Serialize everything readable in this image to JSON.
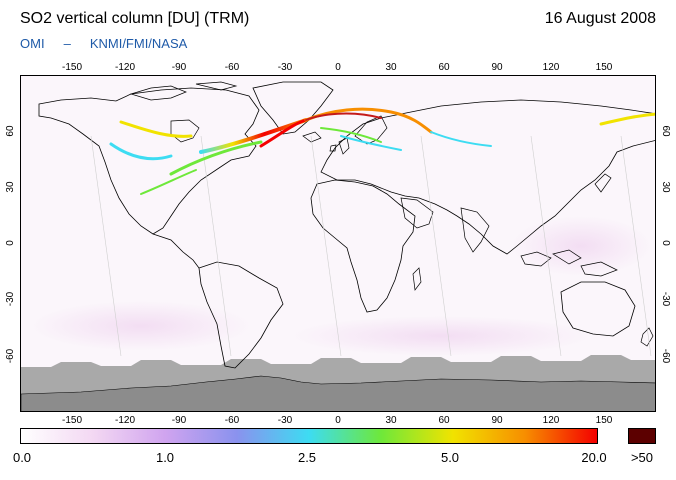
{
  "header": {
    "title": "SO2 vertical column [DU] (TRM)",
    "date": "16 August 2008",
    "source_left": "OMI",
    "source_sep": "–",
    "source_right": "KNMI/FMI/NASA",
    "source_color": "#1e5aa8"
  },
  "map": {
    "lon_ticks": [
      "-150",
      "-120",
      "-90",
      "-60",
      "-30",
      "0",
      "30",
      "60",
      "90",
      "120",
      "150"
    ],
    "lat_ticks": [
      "60",
      "30",
      "0",
      "-30",
      "-60"
    ],
    "land_outline_color": "#000000",
    "no_data_color": "#a9a9a9",
    "antarctica_color": "#8c8c8c"
  },
  "colorbar": {
    "labels": [
      "0.0",
      "1.0",
      "2.5",
      "5.0",
      "20.0",
      ">50"
    ],
    "colors": [
      "#ffffff",
      "#f3d8f3",
      "#d0a4ef",
      "#8a92ee",
      "#3ddcf2",
      "#6ee83a",
      "#f1e300",
      "#f78e00",
      "#f40000"
    ],
    "overflow_color": "#5c0000"
  }
}
